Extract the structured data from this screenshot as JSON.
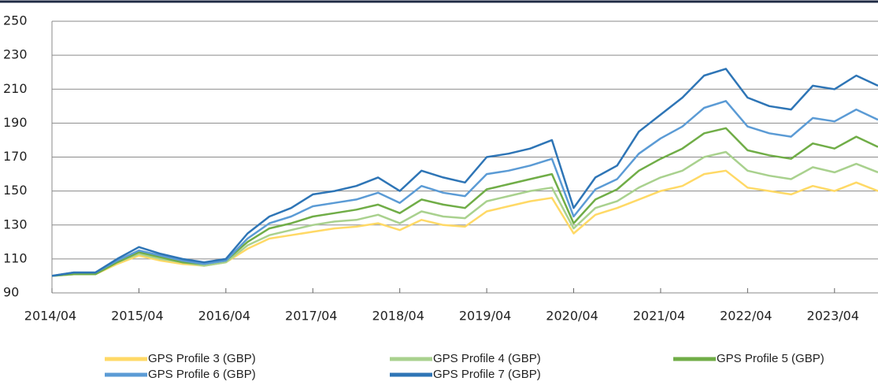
{
  "chart_data": {
    "type": "line",
    "x": [
      "2014/04",
      "2014/07",
      "2014/10",
      "2015/01",
      "2015/04",
      "2015/07",
      "2015/10",
      "2016/01",
      "2016/04",
      "2016/07",
      "2016/10",
      "2017/01",
      "2017/04",
      "2017/07",
      "2017/10",
      "2018/01",
      "2018/04",
      "2018/07",
      "2018/10",
      "2019/01",
      "2019/04",
      "2019/07",
      "2019/10",
      "2020/01",
      "2020/04",
      "2020/07",
      "2020/10",
      "2021/01",
      "2021/04",
      "2021/07",
      "2021/10",
      "2022/01",
      "2022/04",
      "2022/07",
      "2022/10",
      "2023/01",
      "2023/04",
      "2023/07",
      "2023/10"
    ],
    "xlim": [
      "2014/04",
      "2023/10"
    ],
    "xticks": [
      "2014/04",
      "2015/04",
      "2016/04",
      "2017/04",
      "2018/04",
      "2019/04",
      "2020/04",
      "2021/04",
      "2022/04",
      "2023/04"
    ],
    "ylim": [
      90,
      250
    ],
    "yticks": [
      90,
      110,
      130,
      150,
      170,
      190,
      210,
      230,
      250
    ],
    "grid": true,
    "series": [
      {
        "name": "GPS Profile 3 (GBP)",
        "color": "#ffd966",
        "values": [
          100,
          101,
          101,
          107,
          112,
          109,
          107,
          106,
          108,
          116,
          122,
          124,
          126,
          128,
          129,
          131,
          127,
          133,
          130,
          129,
          138,
          141,
          144,
          146,
          125,
          136,
          140,
          145,
          150,
          153,
          160,
          162,
          152,
          150,
          148,
          153,
          150,
          155,
          150
        ]
      },
      {
        "name": "GPS Profile 4 (GBP)",
        "color": "#a9d18e",
        "values": [
          100,
          101,
          101,
          108,
          113,
          110,
          108,
          106,
          108,
          118,
          124,
          127,
          130,
          132,
          133,
          136,
          131,
          138,
          135,
          134,
          144,
          147,
          150,
          152,
          128,
          140,
          144,
          152,
          158,
          162,
          170,
          173,
          162,
          159,
          157,
          164,
          161,
          166,
          161
        ]
      },
      {
        "name": "GPS Profile 5 (GBP)",
        "color": "#70ad47",
        "values": [
          100,
          101,
          101,
          108,
          114,
          111,
          108,
          107,
          109,
          120,
          128,
          131,
          135,
          137,
          139,
          142,
          137,
          145,
          142,
          140,
          151,
          154,
          157,
          160,
          131,
          145,
          151,
          162,
          169,
          175,
          184,
          187,
          174,
          171,
          169,
          178,
          175,
          182,
          176
        ]
      },
      {
        "name": "GPS Profile 6 (GBP)",
        "color": "#5b9bd5",
        "values": [
          100,
          102,
          102,
          109,
          115,
          112,
          109,
          107,
          109,
          122,
          131,
          135,
          141,
          143,
          145,
          149,
          143,
          153,
          149,
          147,
          160,
          162,
          165,
          169,
          135,
          151,
          157,
          172,
          181,
          188,
          199,
          203,
          188,
          184,
          182,
          193,
          191,
          198,
          192
        ]
      },
      {
        "name": "GPS Profile 7 (GBP)",
        "color": "#2e75b6",
        "values": [
          100,
          102,
          102,
          110,
          117,
          113,
          110,
          108,
          110,
          125,
          135,
          140,
          148,
          150,
          153,
          158,
          150,
          162,
          158,
          155,
          170,
          172,
          175,
          180,
          140,
          158,
          165,
          185,
          195,
          205,
          218,
          222,
          205,
          200,
          198,
          212,
          210,
          218,
          212
        ]
      }
    ]
  }
}
